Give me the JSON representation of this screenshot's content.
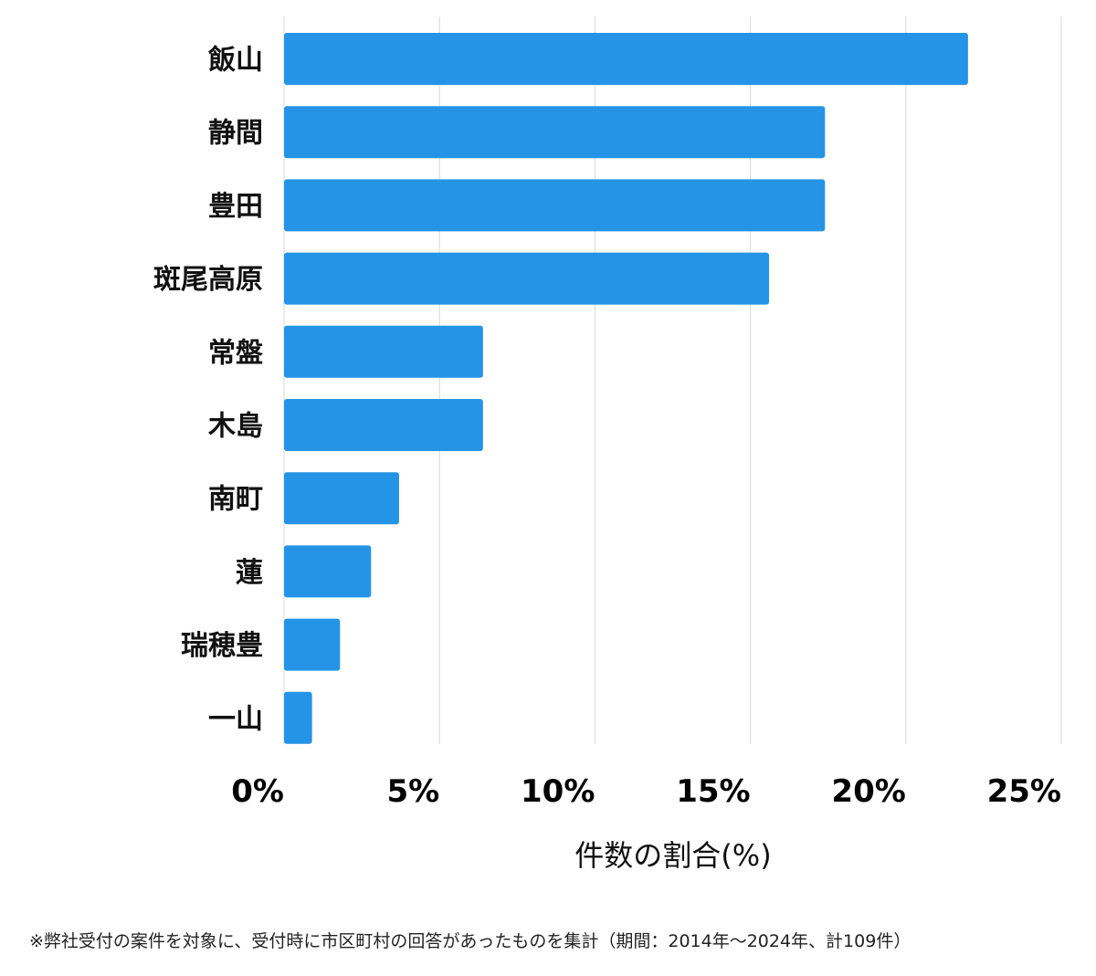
{
  "chart_data": {
    "type": "bar",
    "orientation": "horizontal",
    "categories": [
      "飯山",
      "静間",
      "豊田",
      "斑尾高原",
      "常盤",
      "木島",
      "南町",
      "蓮",
      "瑞穂豊",
      "一山"
    ],
    "values": [
      22.0,
      17.4,
      17.4,
      15.6,
      6.4,
      6.4,
      3.7,
      2.8,
      1.8,
      0.9
    ],
    "xlabel": "件数の割合(%)",
    "xlim": [
      0,
      25
    ],
    "xticks": [
      0,
      5,
      10,
      15,
      20,
      25
    ],
    "xtick_labels": [
      "0%",
      "5%",
      "10%",
      "15%",
      "20%",
      "25%"
    ],
    "grid": true,
    "bar_color": "#2594e6",
    "grid_color": "#d9d9d9"
  },
  "footnote": "※弊社受付の案件を対象に、受付時に市区町村の回答があったものを集計（期間：2014年～2024年、計109件）"
}
